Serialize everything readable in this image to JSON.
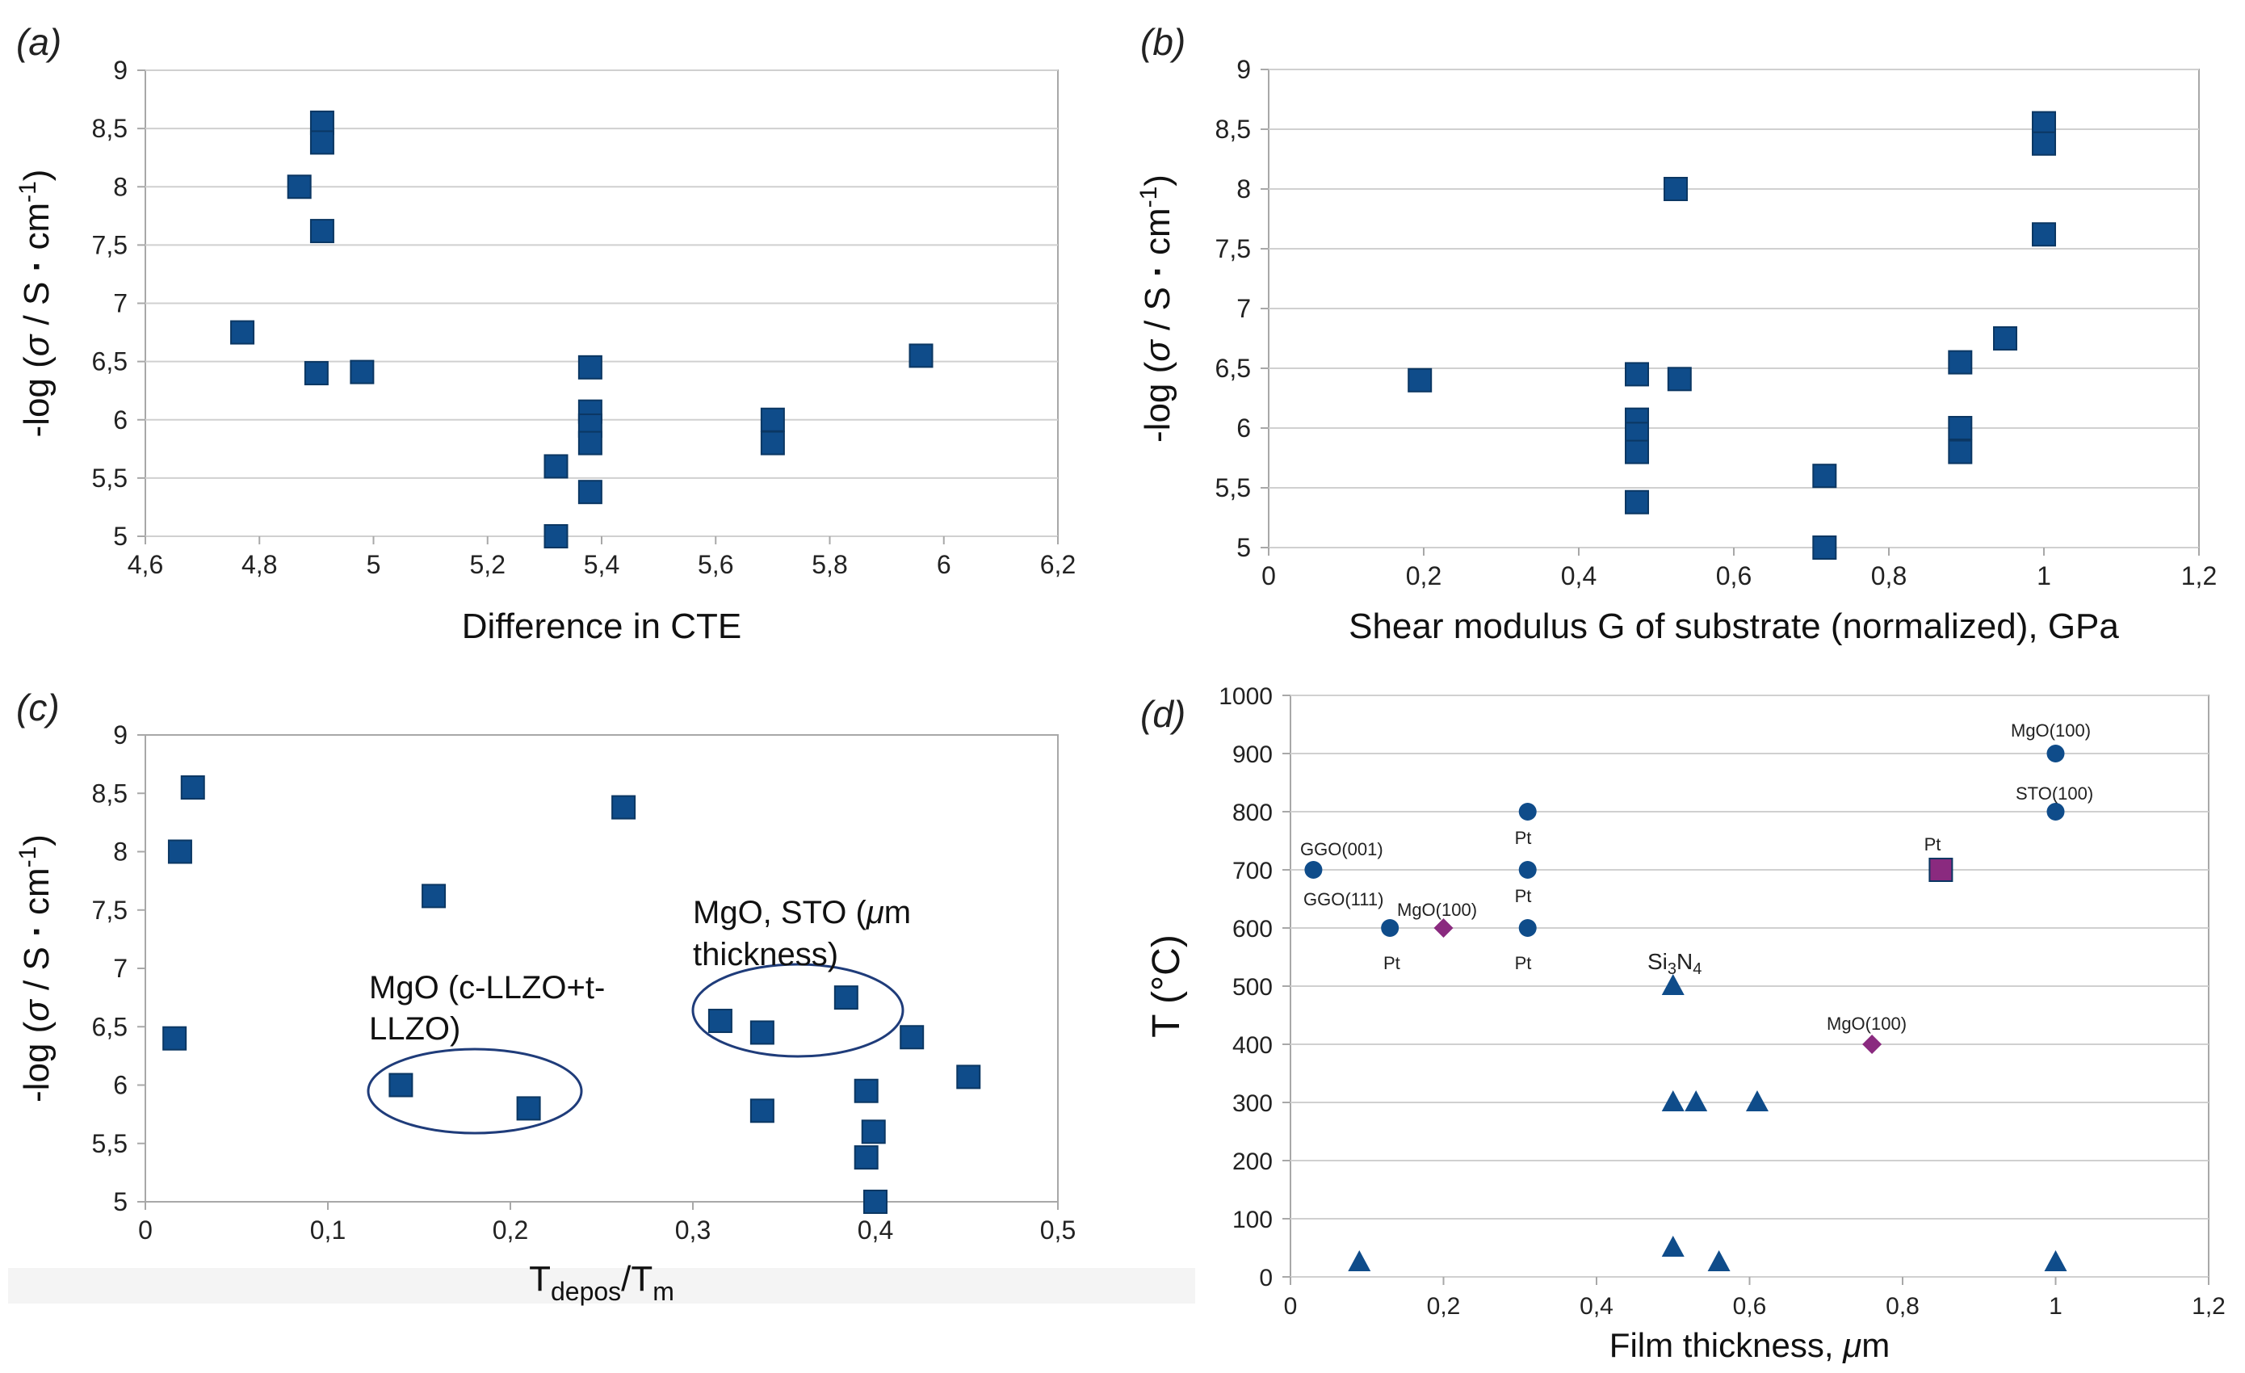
{
  "colors": {
    "marker": "#0f4c8a",
    "marker_edge": "#0b3763",
    "accent": "#8a2a7f",
    "grid": "#d0d0d0",
    "axis": "#a8a8a8"
  },
  "chart_data": [
    {
      "id": "a",
      "type": "scatter",
      "panel_label": "(a)",
      "xlabel": "Difference in CTE",
      "ylabel": {
        "prefix": "-log (",
        "sigma": "σ",
        "unit": " / S ",
        "dot": "·",
        "cm": " cm",
        "exp": "-1",
        "suffix": ")"
      },
      "xlim": [
        4.6,
        6.2
      ],
      "ylim": [
        5,
        9
      ],
      "xticks": [
        "4,6",
        "4,8",
        "5",
        "5,2",
        "5,4",
        "5,6",
        "5,8",
        "6",
        "6,2"
      ],
      "yticks": [
        "5",
        "5,5",
        "6",
        "6,5",
        "7",
        "7,5",
        "8",
        "8,5",
        "9"
      ],
      "grid": "horizontal",
      "series": [
        {
          "marker": "square",
          "points": [
            [
              4.77,
              6.75
            ],
            [
              4.87,
              8.0
            ],
            [
              4.9,
              6.4
            ],
            [
              4.91,
              8.55
            ],
            [
              4.91,
              8.38
            ],
            [
              4.91,
              7.62
            ],
            [
              4.98,
              6.41
            ],
            [
              5.32,
              5.6
            ],
            [
              5.32,
              5.0
            ],
            [
              5.38,
              6.45
            ],
            [
              5.38,
              6.07
            ],
            [
              5.38,
              5.95
            ],
            [
              5.38,
              5.8
            ],
            [
              5.38,
              5.38
            ],
            [
              5.7,
              6.0
            ],
            [
              5.7,
              5.8
            ],
            [
              5.96,
              6.55
            ]
          ]
        }
      ]
    },
    {
      "id": "b",
      "type": "scatter",
      "panel_label": "(b)",
      "xlabel": "Shear modulus G of substrate (normalized), GPa",
      "ylabel": {
        "prefix": "-log (",
        "sigma": "σ",
        "unit": " / S ",
        "dot": "·",
        "cm": " cm",
        "exp": "-1",
        "suffix": ")"
      },
      "xlim": [
        0,
        1.2
      ],
      "ylim": [
        5,
        9
      ],
      "xticks": [
        "0",
        "0,2",
        "0,4",
        "0,6",
        "0,8",
        "1",
        "1,2"
      ],
      "yticks": [
        "5",
        "5,5",
        "6",
        "6,5",
        "7",
        "7,5",
        "8",
        "8,5",
        "9"
      ],
      "grid": "horizontal",
      "series": [
        {
          "marker": "square",
          "points": [
            [
              0.195,
              6.4
            ],
            [
              0.475,
              6.45
            ],
            [
              0.475,
              6.07
            ],
            [
              0.475,
              5.95
            ],
            [
              0.475,
              5.8
            ],
            [
              0.475,
              5.38
            ],
            [
              0.525,
              8.0
            ],
            [
              0.53,
              6.41
            ],
            [
              0.717,
              5.6
            ],
            [
              0.717,
              5.0
            ],
            [
              0.892,
              6.55
            ],
            [
              0.892,
              6.0
            ],
            [
              0.892,
              5.8
            ],
            [
              0.95,
              6.75
            ],
            [
              1.0,
              8.55
            ],
            [
              1.0,
              8.38
            ],
            [
              1.0,
              7.62
            ]
          ]
        }
      ]
    },
    {
      "id": "c",
      "type": "scatter",
      "panel_label": "(c)",
      "xlabel": {
        "T": "T",
        "sub1": "depos",
        "slash": "/T",
        "sub2": "m"
      },
      "ylabel": {
        "prefix": "-log (",
        "sigma": "σ",
        "unit": " / S ",
        "dot": "·",
        "cm": " cm",
        "exp": "-1",
        "suffix": ")"
      },
      "xlim": [
        0,
        0.5
      ],
      "ylim": [
        5,
        9
      ],
      "xticks": [
        "0",
        "0,1",
        "0,2",
        "0,3",
        "0,4",
        "0,5"
      ],
      "yticks": [
        "5",
        "5,5",
        "6",
        "6,5",
        "7",
        "7,5",
        "8",
        "8,5",
        "9"
      ],
      "grid": "none",
      "series": [
        {
          "marker": "square",
          "points": [
            [
              0.016,
              6.4
            ],
            [
              0.019,
              8.0
            ],
            [
              0.026,
              8.55
            ],
            [
              0.14,
              6.0
            ],
            [
              0.158,
              7.62
            ],
            [
              0.21,
              5.8
            ],
            [
              0.262,
              8.38
            ],
            [
              0.315,
              6.55
            ],
            [
              0.338,
              6.45
            ],
            [
              0.338,
              5.78
            ],
            [
              0.384,
              6.75
            ],
            [
              0.395,
              5.95
            ],
            [
              0.395,
              5.38
            ],
            [
              0.399,
              5.6
            ],
            [
              0.4,
              5.0
            ],
            [
              0.42,
              6.41
            ],
            [
              0.451,
              6.07
            ]
          ]
        }
      ],
      "annotations": [
        {
          "lines": [
            "MgO (c-LLZO+t-",
            "LLZO)"
          ]
        },
        {
          "lines": [
            "MgO, STO (",
            "μ",
            "m",
            "thickness)"
          ]
        }
      ]
    },
    {
      "id": "d",
      "type": "scatter",
      "panel_label": "(d)",
      "xlabel": {
        "text": "Film thickness, ",
        "mu": "μ",
        "unit": "m"
      },
      "ylabel": "T (°C)",
      "xlim": [
        0,
        1.2
      ],
      "ylim": [
        0,
        1000
      ],
      "xticks": [
        "0",
        "0,2",
        "0,4",
        "0,6",
        "0,8",
        "1",
        "1,2"
      ],
      "yticks": [
        "0",
        "100",
        "200",
        "300",
        "400",
        "500",
        "600",
        "700",
        "800",
        "900",
        "1000"
      ],
      "grid": "horizontal",
      "series": [
        {
          "name": "circles",
          "marker": "circle",
          "color": "#0f4c8a",
          "points": [
            [
              0.03,
              700
            ],
            [
              0.13,
              600
            ],
            [
              0.31,
              800
            ],
            [
              0.31,
              700
            ],
            [
              0.31,
              600
            ],
            [
              1.0,
              900
            ],
            [
              1.0,
              800
            ]
          ]
        },
        {
          "name": "triangles",
          "marker": "triangle",
          "color": "#0f4c8a",
          "points": [
            [
              0.09,
              25
            ],
            [
              0.5,
              500
            ],
            [
              0.5,
              300
            ],
            [
              0.53,
              300
            ],
            [
              0.61,
              300
            ],
            [
              0.5,
              50
            ],
            [
              0.56,
              25
            ],
            [
              1.0,
              25
            ]
          ]
        },
        {
          "name": "diamonds",
          "marker": "diamond",
          "color": "#8a2a7f",
          "points": [
            [
              0.2,
              600
            ],
            [
              0.76,
              400
            ]
          ]
        },
        {
          "name": "purple-square",
          "marker": "square",
          "color": "#8a2a7f",
          "points": [
            [
              0.85,
              700
            ]
          ]
        }
      ],
      "labels": [
        "GGO(001)",
        "GGO(111)",
        "MgO(100)",
        "Pt",
        "Pt",
        "Pt",
        "Pt",
        "Si3N4",
        "Pt",
        "MgO(100)",
        "MgO(100)",
        "STO(100)"
      ]
    }
  ]
}
